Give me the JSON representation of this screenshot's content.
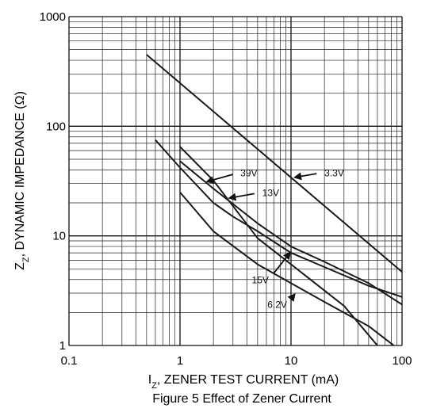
{
  "chart_data": {
    "type": "line",
    "x_scale": "log",
    "y_scale": "log",
    "xlim": [
      0.1,
      100
    ],
    "ylim": [
      1,
      1000
    ],
    "xlabel_main": "I",
    "xlabel_sub": "Z",
    "xlabel_rest": ", ZENER TEST CURRENT (mA)",
    "ylabel_main": "Z",
    "ylabel_sub": "Z",
    "ylabel_rest": ", DYNAMIC IMPEDANCE (Ω)",
    "caption": "Figure 5  Effect of Zener Current",
    "x_ticks": [
      {
        "value": 0.1,
        "label": "0.1"
      },
      {
        "value": 1,
        "label": "1"
      },
      {
        "value": 10,
        "label": "10"
      },
      {
        "value": 100,
        "label": "100"
      }
    ],
    "y_ticks": [
      {
        "value": 1,
        "label": "1"
      },
      {
        "value": 10,
        "label": "10"
      },
      {
        "value": 100,
        "label": "100"
      },
      {
        "value": 1000,
        "label": "1000"
      }
    ],
    "grid": true,
    "series": [
      {
        "name": "3.3V",
        "x": [
          0.5,
          120
        ],
        "y": [
          450,
          4
        ]
      },
      {
        "name": "39V",
        "x": [
          1,
          2,
          5,
          10,
          30,
          60
        ],
        "y": [
          65,
          32,
          9.5,
          5.5,
          2.3,
          1
        ]
      },
      {
        "name": "13V",
        "x": [
          0.6,
          1,
          2,
          3,
          5,
          10,
          20,
          50,
          120
        ],
        "y": [
          75,
          42,
          20,
          15,
          11,
          7,
          5.2,
          3.5,
          2.6
        ]
      },
      {
        "name": "15V",
        "x": [
          1,
          2,
          5,
          10,
          20,
          50,
          120
        ],
        "y": [
          48,
          27,
          13,
          8,
          5.8,
          3.7,
          2.1
        ]
      },
      {
        "name": "6.2V",
        "x": [
          1,
          2,
          5,
          10,
          20,
          50,
          90
        ],
        "y": [
          25,
          11,
          5.5,
          3.7,
          2.5,
          1.5,
          0.95
        ]
      }
    ],
    "annotations": [
      {
        "text": "3.3V",
        "tip_x": 10.5,
        "tip_y": 34,
        "label_x": 20,
        "label_y": 38
      },
      {
        "text": "39V",
        "tip_x": 1.7,
        "tip_y": 31,
        "label_x": 3.5,
        "label_y": 38
      },
      {
        "text": "13V",
        "tip_x": 2.7,
        "tip_y": 22,
        "label_x": 5.5,
        "label_y": 25
      },
      {
        "text": "15V",
        "tip_x": 10,
        "tip_y": 7.2,
        "label_x": 6.3,
        "label_y": 4
      },
      {
        "text": "6.2V",
        "tip_x": 11,
        "tip_y": 3.0,
        "label_x": 9.2,
        "label_y": 2.4
      }
    ]
  }
}
